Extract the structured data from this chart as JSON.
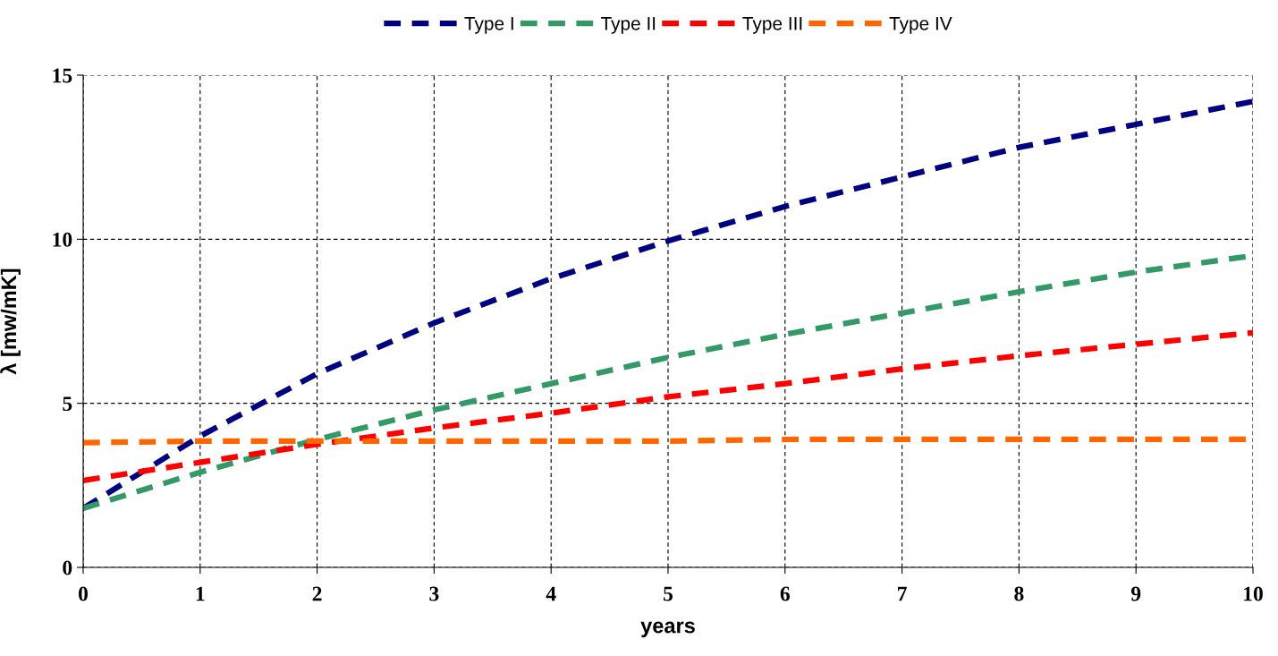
{
  "chart_data": {
    "type": "line",
    "xlabel": "years",
    "ylabel": "λ [mw/mK]",
    "x": [
      0,
      1,
      2,
      3,
      4,
      5,
      6,
      7,
      8,
      9,
      10
    ],
    "series": [
      {
        "name": "Type I",
        "color": "#000080",
        "values": [
          1.8,
          4.0,
          5.9,
          7.45,
          8.8,
          9.95,
          11.0,
          11.9,
          12.8,
          13.5,
          14.2
        ]
      },
      {
        "name": "Type II",
        "color": "#339966",
        "values": [
          1.8,
          2.9,
          3.9,
          4.8,
          5.6,
          6.4,
          7.1,
          7.75,
          8.4,
          9.0,
          9.5
        ]
      },
      {
        "name": "Type III",
        "color": "#ff0000",
        "values": [
          2.65,
          3.2,
          3.75,
          4.25,
          4.7,
          5.2,
          5.6,
          6.05,
          6.45,
          6.8,
          7.15
        ]
      },
      {
        "name": "Type IV",
        "color": "#ff6600",
        "values": [
          3.8,
          3.85,
          3.85,
          3.85,
          3.85,
          3.85,
          3.9,
          3.9,
          3.9,
          3.9,
          3.9
        ]
      }
    ],
    "xlim": [
      0,
      10
    ],
    "xticks": [
      0,
      1,
      2,
      3,
      4,
      5,
      6,
      7,
      8,
      9,
      10
    ],
    "ylim": [
      0,
      15
    ],
    "yticks": [
      0,
      5,
      10,
      15
    ],
    "grid": true,
    "legend": "top",
    "marker": "none",
    "line_style": "dashed"
  }
}
